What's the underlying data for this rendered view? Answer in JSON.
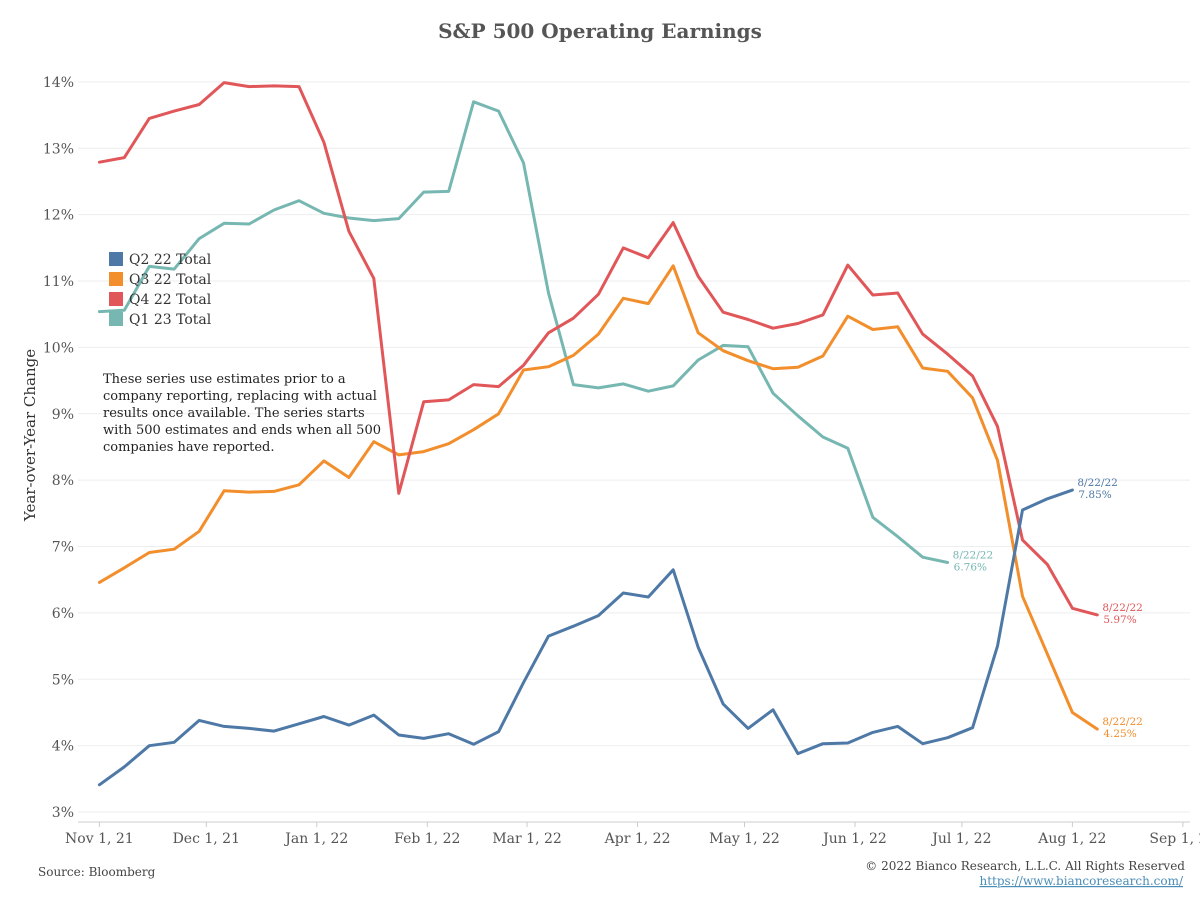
{
  "footer": {
    "source": "Source: Bloomberg",
    "copyright": "© 2022 Bianco Research, L.L.C. All Rights Reserved",
    "link": "https://www.biancoresearch.com/"
  },
  "annotation": [
    "These series use estimates prior to a",
    "company reporting, replacing with actual",
    "results once available. The series starts",
    "with 500 estimates and ends when all 500",
    "companies have reported."
  ],
  "chart_data": {
    "type": "line",
    "title": "S&P 500 Operating Earnings",
    "xlabel": "",
    "ylabel": "Year-over-Year Change",
    "ylim": [
      2.85,
      14.3
    ],
    "yticks": [
      3,
      4,
      5,
      6,
      7,
      8,
      9,
      10,
      11,
      12,
      13,
      14
    ],
    "ytick_labels": [
      "3%",
      "4%",
      "5%",
      "6%",
      "7%",
      "8%",
      "9%",
      "10%",
      "11%",
      "12%",
      "13%",
      "14%"
    ],
    "xlim": [
      "2021-10-26",
      "2022-09-03"
    ],
    "xticks": [
      "2021-11-01",
      "2021-12-01",
      "2022-01-01",
      "2022-02-01",
      "2022-03-01",
      "2022-04-01",
      "2022-05-01",
      "2022-06-01",
      "2022-07-01",
      "2022-08-01",
      "2022-09-01"
    ],
    "xtick_labels": [
      "Nov 1, 21",
      "Dec 1, 21",
      "Jan 1, 22",
      "Feb 1, 22",
      "Mar 1, 22",
      "Apr 1, 22",
      "May 1, 22",
      "Jun 1, 22",
      "Jul 1, 22",
      "Aug 1, 22",
      "Sep 1, 22"
    ],
    "grid": true,
    "legend": "left",
    "series": [
      {
        "name": "Q2 22 Total",
        "color": "#4e79a7",
        "end_label": [
          "8/22/22",
          "7.85%"
        ],
        "x": [
          "2021-11-01",
          "2021-11-08",
          "2021-11-15",
          "2021-11-22",
          "2021-11-29",
          "2021-12-06",
          "2021-12-13",
          "2021-12-20",
          "2021-12-27",
          "2022-01-03",
          "2022-01-10",
          "2022-01-17",
          "2022-01-24",
          "2022-01-31",
          "2022-02-07",
          "2022-02-14",
          "2022-02-21",
          "2022-02-28",
          "2022-03-07",
          "2022-03-14",
          "2022-03-21",
          "2022-03-28",
          "2022-04-04",
          "2022-04-11",
          "2022-04-18",
          "2022-04-25",
          "2022-05-02",
          "2022-05-09",
          "2022-05-16",
          "2022-05-23",
          "2022-05-30",
          "2022-06-06",
          "2022-06-13",
          "2022-06-20",
          "2022-06-27",
          "2022-07-04",
          "2022-07-11",
          "2022-07-18",
          "2022-07-25",
          "2022-08-01",
          "2022-08-08",
          "2022-08-15",
          "2022-08-22"
        ],
        "values": [
          3.41,
          3.68,
          4.0,
          4.05,
          4.38,
          4.29,
          4.26,
          4.22,
          4.33,
          4.44,
          4.31,
          4.46,
          4.16,
          4.11,
          4.18,
          4.02,
          4.21,
          4.95,
          5.65,
          5.8,
          5.96,
          6.3,
          6.24,
          6.65,
          5.48,
          4.63,
          4.26,
          4.54,
          3.88,
          4.03,
          4.04,
          4.2,
          4.29,
          4.03,
          4.12,
          4.27,
          5.5,
          7.55,
          7.72,
          7.85,
          null,
          null,
          null
        ]
      },
      {
        "name": "Q3 22 Total",
        "color": "#f28e2b",
        "end_label": [
          "8/22/22",
          "4.25%"
        ],
        "x": [
          "2021-11-01",
          "2021-11-08",
          "2021-11-15",
          "2021-11-22",
          "2021-11-29",
          "2021-12-06",
          "2021-12-13",
          "2021-12-20",
          "2021-12-27",
          "2022-01-03",
          "2022-01-10",
          "2022-01-17",
          "2022-01-24",
          "2022-01-31",
          "2022-02-07",
          "2022-02-14",
          "2022-02-21",
          "2022-02-28",
          "2022-03-07",
          "2022-03-14",
          "2022-03-21",
          "2022-03-28",
          "2022-04-04",
          "2022-04-11",
          "2022-04-18",
          "2022-04-25",
          "2022-05-02",
          "2022-05-09",
          "2022-05-16",
          "2022-05-23",
          "2022-05-30",
          "2022-06-06",
          "2022-06-13",
          "2022-06-20",
          "2022-06-27",
          "2022-07-04",
          "2022-07-11",
          "2022-07-18",
          "2022-07-25",
          "2022-08-01",
          "2022-08-08",
          "2022-08-15",
          "2022-08-22"
        ],
        "values": [
          6.46,
          6.68,
          6.91,
          6.96,
          7.23,
          7.84,
          7.82,
          7.83,
          7.93,
          8.29,
          8.04,
          8.58,
          8.38,
          8.43,
          8.55,
          8.76,
          9.0,
          9.66,
          9.71,
          9.88,
          10.2,
          10.74,
          10.66,
          11.23,
          10.22,
          9.95,
          9.8,
          9.68,
          9.7,
          9.87,
          10.47,
          10.27,
          10.31,
          9.69,
          9.64,
          9.24,
          8.3,
          6.25,
          5.38,
          4.5,
          4.25,
          null,
          null
        ]
      },
      {
        "name": "Q4 22 Total",
        "color": "#e15759",
        "end_label": [
          "8/22/22",
          "5.97%"
        ],
        "x": [
          "2021-11-01",
          "2021-11-08",
          "2021-11-15",
          "2021-11-22",
          "2021-11-29",
          "2021-12-06",
          "2021-12-13",
          "2021-12-20",
          "2021-12-27",
          "2022-01-03",
          "2022-01-10",
          "2022-01-17",
          "2022-01-24",
          "2022-01-31",
          "2022-02-07",
          "2022-02-14",
          "2022-02-21",
          "2022-02-28",
          "2022-03-07",
          "2022-03-14",
          "2022-03-21",
          "2022-03-28",
          "2022-04-04",
          "2022-04-11",
          "2022-04-18",
          "2022-04-25",
          "2022-05-02",
          "2022-05-09",
          "2022-05-16",
          "2022-05-23",
          "2022-05-30",
          "2022-06-06",
          "2022-06-13",
          "2022-06-20",
          "2022-06-27",
          "2022-07-04",
          "2022-07-11",
          "2022-07-18",
          "2022-07-25",
          "2022-08-01",
          "2022-08-08",
          "2022-08-15",
          "2022-08-22"
        ],
        "values": [
          12.79,
          12.86,
          13.45,
          13.56,
          13.66,
          13.99,
          13.93,
          13.94,
          13.93,
          13.09,
          11.75,
          11.04,
          7.8,
          9.18,
          9.21,
          9.44,
          9.41,
          9.73,
          10.22,
          10.44,
          10.8,
          11.5,
          11.35,
          11.88,
          11.07,
          10.53,
          10.42,
          10.29,
          10.36,
          10.49,
          11.24,
          10.79,
          10.82,
          10.2,
          9.9,
          9.57,
          8.81,
          7.1,
          6.73,
          6.07,
          5.97,
          null,
          null
        ]
      },
      {
        "name": "Q1 23 Total",
        "color": "#76b7b2",
        "end_label": [
          "8/22/22",
          "6.76%"
        ],
        "x": [
          "2021-11-01",
          "2021-11-08",
          "2021-11-15",
          "2021-11-22",
          "2021-11-29",
          "2021-12-06",
          "2021-12-13",
          "2021-12-20",
          "2021-12-27",
          "2022-01-03",
          "2022-01-10",
          "2022-01-17",
          "2022-01-24",
          "2022-01-31",
          "2022-02-07",
          "2022-02-14",
          "2022-02-21",
          "2022-02-28",
          "2022-03-07",
          "2022-03-14",
          "2022-03-21",
          "2022-03-28",
          "2022-04-04",
          "2022-04-11",
          "2022-04-18",
          "2022-04-25",
          "2022-05-02",
          "2022-05-09",
          "2022-05-16",
          "2022-05-23",
          "2022-05-30",
          "2022-06-06",
          "2022-06-13",
          "2022-06-20",
          "2022-06-27",
          "2022-07-04",
          "2022-07-11",
          "2022-07-18",
          "2022-07-25",
          "2022-08-01",
          "2022-08-08",
          "2022-08-15",
          "2022-08-22"
        ],
        "values": [
          10.54,
          10.56,
          11.22,
          11.18,
          11.64,
          11.87,
          11.86,
          12.07,
          12.21,
          12.02,
          11.95,
          11.91,
          11.94,
          12.34,
          12.35,
          13.7,
          13.56,
          12.78,
          10.82,
          9.44,
          9.39,
          9.45,
          9.34,
          9.42,
          9.81,
          10.03,
          10.01,
          9.31,
          8.97,
          8.65,
          8.48,
          7.44,
          7.15,
          6.84,
          6.76,
          null,
          null,
          null,
          null,
          null,
          null,
          null,
          null
        ]
      }
    ]
  }
}
